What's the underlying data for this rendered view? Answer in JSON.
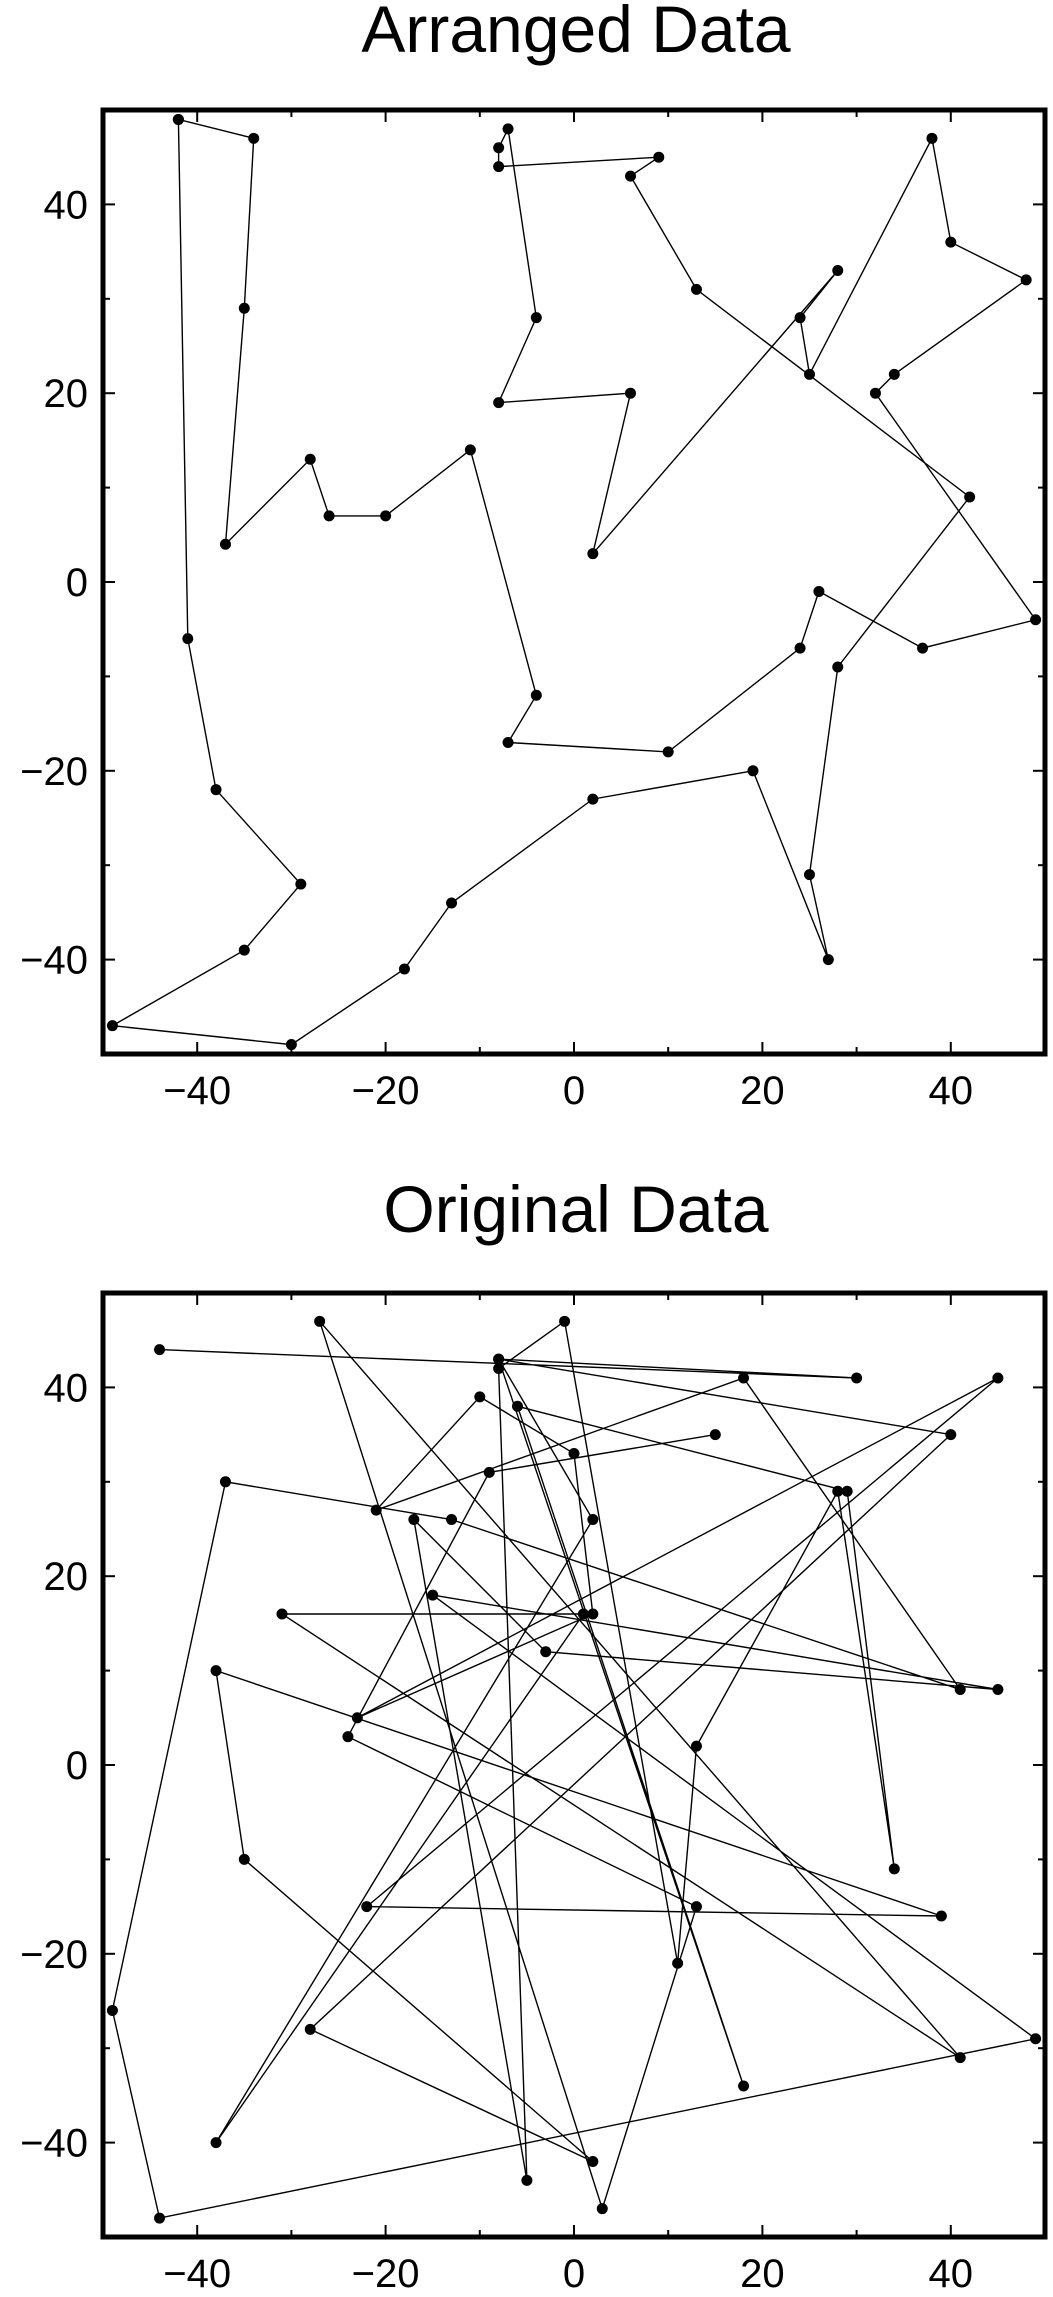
{
  "chart_data": [
    {
      "type": "line",
      "title": "Arranged Data",
      "xlabel": "",
      "ylabel": "",
      "xlim": [
        -50,
        50
      ],
      "ylim": [
        -50,
        50
      ],
      "xticks": [
        -40,
        -20,
        0,
        20,
        40
      ],
      "yticks": [
        -40,
        -20,
        0,
        20,
        40
      ],
      "xtick_labels": [
        "−40",
        "−20",
        "0",
        "20",
        "40"
      ],
      "ytick_labels": [
        "−40",
        "−20",
        "0",
        "20",
        "40"
      ],
      "grid": false,
      "markers": true,
      "series": [
        {
          "x": [
            -42,
            -34,
            -35,
            -37,
            -28,
            -26,
            -20,
            -11,
            -4,
            -7,
            10,
            24,
            26,
            37,
            49,
            32,
            34,
            48,
            40,
            38,
            25,
            24,
            28,
            2,
            6,
            -8,
            -4,
            -7,
            -8,
            -8,
            9,
            6,
            13,
            42,
            28,
            25,
            27,
            19,
            2,
            -13,
            -18,
            -30,
            -49,
            -35,
            -29,
            -38,
            -41,
            -42
          ],
          "y": [
            49,
            47,
            29,
            4,
            13,
            7,
            7,
            14,
            -12,
            -17,
            -18,
            -7,
            -1,
            -7,
            -4,
            20,
            22,
            32,
            36,
            47,
            22,
            28,
            33,
            3,
            20,
            19,
            28,
            48,
            46,
            44,
            45,
            43,
            31,
            9,
            -9,
            -31,
            -40,
            -20,
            -23,
            -34,
            -41,
            -49,
            -47,
            -39,
            -32,
            -22,
            -6,
            49
          ]
        }
      ]
    },
    {
      "type": "line",
      "title": "Original Data",
      "xlabel": "",
      "ylabel": "",
      "xlim": [
        -50,
        50
      ],
      "ylim": [
        -50,
        50
      ],
      "xticks": [
        -40,
        -20,
        0,
        20,
        40
      ],
      "yticks": [
        -40,
        -20,
        0,
        20,
        40
      ],
      "xtick_labels": [
        "−40",
        "−20",
        "0",
        "20",
        "40"
      ],
      "ytick_labels": [
        "−40",
        "−20",
        "0",
        "20",
        "40"
      ],
      "grid": false,
      "markers": true,
      "series": [
        {
          "x": [
            -44,
            30,
            -8,
            40,
            -28,
            2,
            -35,
            -38,
            39,
            -22,
            45,
            -23,
            2,
            0,
            -10,
            -21,
            18,
            41,
            -13,
            -37,
            -49,
            -44,
            49,
            -15,
            45,
            -3,
            -17,
            -5,
            -8,
            -1,
            11,
            13,
            28,
            34,
            29,
            -6,
            18,
            -8,
            2,
            -38,
            1,
            -31,
            41,
            -27,
            3,
            13,
            -24,
            -9,
            15
          ],
          "y": [
            44,
            41,
            43,
            35,
            -28,
            -42,
            -10,
            10,
            -16,
            -15,
            41,
            5,
            16,
            33,
            39,
            27,
            41,
            8,
            26,
            30,
            -26,
            -48,
            -29,
            18,
            8,
            12,
            26,
            -44,
            42,
            47,
            -21,
            2,
            29,
            -11,
            29,
            38,
            -34,
            43,
            26,
            -40,
            16,
            16,
            -31,
            47,
            -47,
            -15,
            3,
            31,
            35
          ]
        }
      ]
    }
  ]
}
